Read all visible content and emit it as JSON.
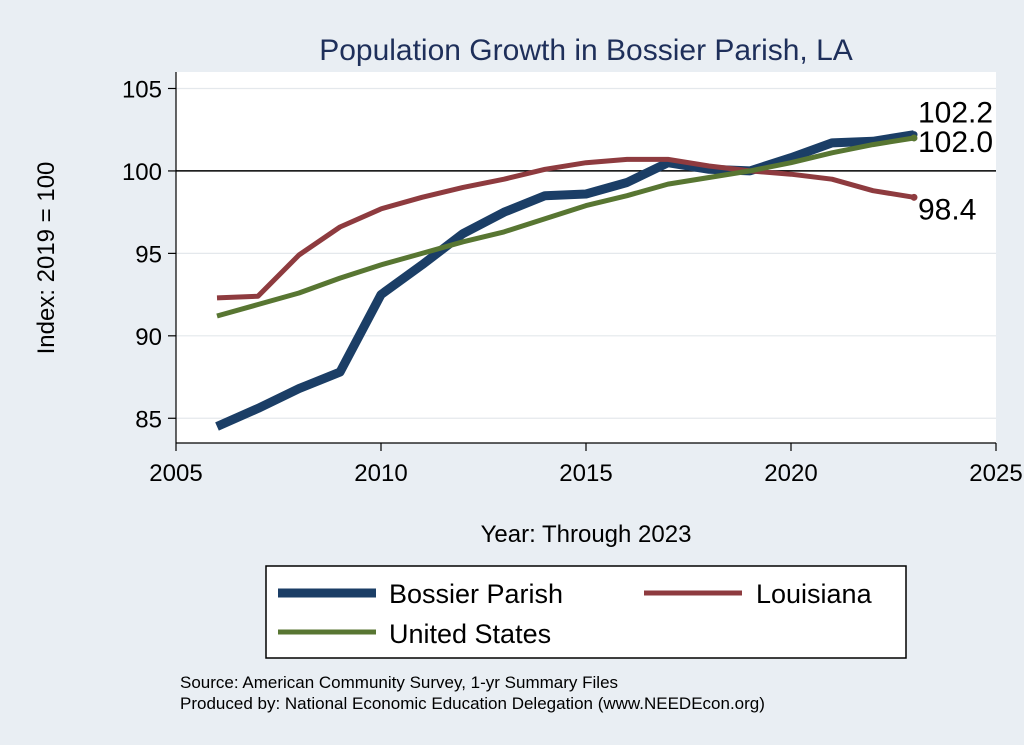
{
  "chart_data": {
    "type": "line",
    "title": "Population Growth in Bossier Parish, LA",
    "xlabel": "Year: Through 2023",
    "ylabel": "Index: 2019 = 100",
    "xlim": [
      2005,
      2025
    ],
    "ylim": [
      83.5,
      106
    ],
    "xticks": [
      2005,
      2010,
      2015,
      2020,
      2025
    ],
    "yticks": [
      85,
      90,
      95,
      100,
      105
    ],
    "reference_line": 100,
    "grid": true,
    "x": [
      2006,
      2007,
      2008,
      2009,
      2010,
      2011,
      2012,
      2013,
      2014,
      2015,
      2016,
      2017,
      2018,
      2019,
      2020,
      2021,
      2022,
      2023
    ],
    "series": [
      {
        "name": "Bossier Parish",
        "color": "#1b3e66",
        "values": [
          84.5,
          85.6,
          86.8,
          87.8,
          92.5,
          94.3,
          96.2,
          97.5,
          98.5,
          98.6,
          99.3,
          100.5,
          100.1,
          100.0,
          100.8,
          101.7,
          101.8,
          102.2
        ],
        "end_label": "102.2"
      },
      {
        "name": "Louisiana",
        "color": "#8e3b3f",
        "values": [
          92.3,
          92.4,
          94.9,
          96.6,
          97.7,
          98.4,
          99.0,
          99.5,
          100.1,
          100.5,
          100.7,
          100.7,
          100.3,
          100.0,
          99.8,
          99.5,
          98.8,
          98.4
        ],
        "end_label": "98.4"
      },
      {
        "name": "United States",
        "color": "#587632",
        "values": [
          91.2,
          91.9,
          92.6,
          93.5,
          94.3,
          95.0,
          95.7,
          96.3,
          97.1,
          97.9,
          98.5,
          99.2,
          99.6,
          100.0,
          100.5,
          101.1,
          101.6,
          102.0
        ],
        "end_label": "102.0"
      }
    ],
    "legend_position": "bottom",
    "legend_entries": [
      "Bossier Parish",
      "Louisiana",
      "United States"
    ],
    "source_note": "Source: American Community Survey, 1-yr Summary Files",
    "producer_note": "Produced by: National Economic Education Delegation (www.NEEDEcon.org)"
  }
}
